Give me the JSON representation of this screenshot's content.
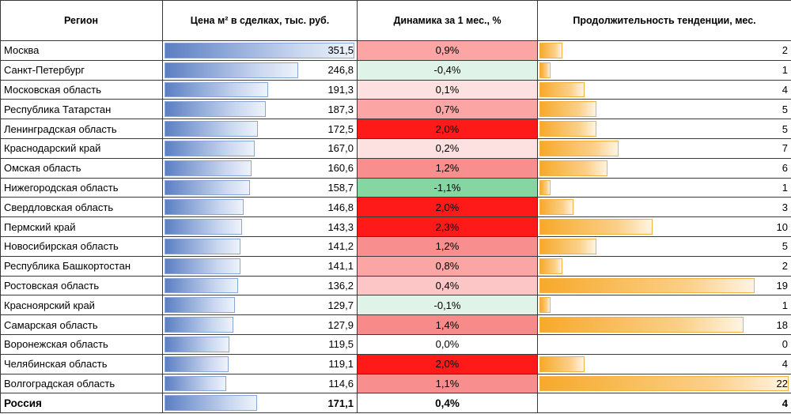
{
  "headers": {
    "region": "Регион",
    "price": "Цена м² в сделках, тыс. руб.",
    "dynamic": "Динамика за 1 мес., %",
    "duration": "Продолжительность тенденции, мес."
  },
  "colors": {
    "blue_bar": "#5b7fc3",
    "orange_bar": "#f7a92a",
    "strong_red": "#ff1a1a",
    "light_red": "#f9a6a6",
    "green": "#86d6a2",
    "light_green": "#e0f3e8"
  },
  "price_max": 351.5,
  "duration_max": 22,
  "rows": [
    {
      "region": "Москва",
      "price": "351,5",
      "price_value": 351.5,
      "dynamic": "0,9%",
      "dynamic_value": 0.9,
      "duration": "2",
      "duration_value": 2
    },
    {
      "region": "Санкт-Петербург",
      "price": "246,8",
      "price_value": 246.8,
      "dynamic": "-0,4%",
      "dynamic_value": -0.4,
      "duration": "1",
      "duration_value": 1
    },
    {
      "region": "Московская область",
      "price": "191,3",
      "price_value": 191.3,
      "dynamic": "0,1%",
      "dynamic_value": 0.1,
      "duration": "4",
      "duration_value": 4
    },
    {
      "region": "Республика Татарстан",
      "price": "187,3",
      "price_value": 187.3,
      "dynamic": "0,7%",
      "dynamic_value": 0.7,
      "duration": "5",
      "duration_value": 5
    },
    {
      "region": "Ленинградская область",
      "price": "172,5",
      "price_value": 172.5,
      "dynamic": "2,0%",
      "dynamic_value": 2.0,
      "duration": "5",
      "duration_value": 5
    },
    {
      "region": "Краснодарский край",
      "price": "167,0",
      "price_value": 167.0,
      "dynamic": "0,2%",
      "dynamic_value": 0.2,
      "duration": "7",
      "duration_value": 7
    },
    {
      "region": "Омская область",
      "price": "160,6",
      "price_value": 160.6,
      "dynamic": "1,2%",
      "dynamic_value": 1.2,
      "duration": "6",
      "duration_value": 6
    },
    {
      "region": "Нижегородская область",
      "price": "158,7",
      "price_value": 158.7,
      "dynamic": "-1,1%",
      "dynamic_value": -1.1,
      "duration": "1",
      "duration_value": 1
    },
    {
      "region": "Свердловская область",
      "price": "146,8",
      "price_value": 146.8,
      "dynamic": "2,0%",
      "dynamic_value": 2.0,
      "duration": "3",
      "duration_value": 3
    },
    {
      "region": "Пермский край",
      "price": "143,3",
      "price_value": 143.3,
      "dynamic": "2,3%",
      "dynamic_value": 2.3,
      "duration": "10",
      "duration_value": 10
    },
    {
      "region": "Новосибирская область",
      "price": "141,2",
      "price_value": 141.2,
      "dynamic": "1,2%",
      "dynamic_value": 1.2,
      "duration": "5",
      "duration_value": 5
    },
    {
      "region": "Республика Башкортостан",
      "price": "141,1",
      "price_value": 141.1,
      "dynamic": "0,8%",
      "dynamic_value": 0.8,
      "duration": "2",
      "duration_value": 2
    },
    {
      "region": "Ростовская область",
      "price": "136,2",
      "price_value": 136.2,
      "dynamic": "0,4%",
      "dynamic_value": 0.4,
      "duration": "19",
      "duration_value": 19
    },
    {
      "region": "Красноярский край",
      "price": "129,7",
      "price_value": 129.7,
      "dynamic": "-0,1%",
      "dynamic_value": -0.1,
      "duration": "1",
      "duration_value": 1
    },
    {
      "region": "Самарская область",
      "price": "127,9",
      "price_value": 127.9,
      "dynamic": "1,4%",
      "dynamic_value": 1.4,
      "duration": "18",
      "duration_value": 18
    },
    {
      "region": "Воронежская область",
      "price": "119,5",
      "price_value": 119.5,
      "dynamic": "0,0%",
      "dynamic_value": 0.0,
      "duration": "0",
      "duration_value": 0
    },
    {
      "region": "Челябинская область",
      "price": "119,1",
      "price_value": 119.1,
      "dynamic": "2,0%",
      "dynamic_value": 2.0,
      "duration": "4",
      "duration_value": 4
    },
    {
      "region": "Волгоградская область",
      "price": "114,6",
      "price_value": 114.6,
      "dynamic": "1,1%",
      "dynamic_value": 1.1,
      "duration": "22",
      "duration_value": 22
    }
  ],
  "total": {
    "region": "Россия",
    "price": "171,1",
    "price_value": 171.1,
    "dynamic": "0,4%",
    "dynamic_value": 0.4,
    "duration": "4",
    "duration_value": 4
  }
}
